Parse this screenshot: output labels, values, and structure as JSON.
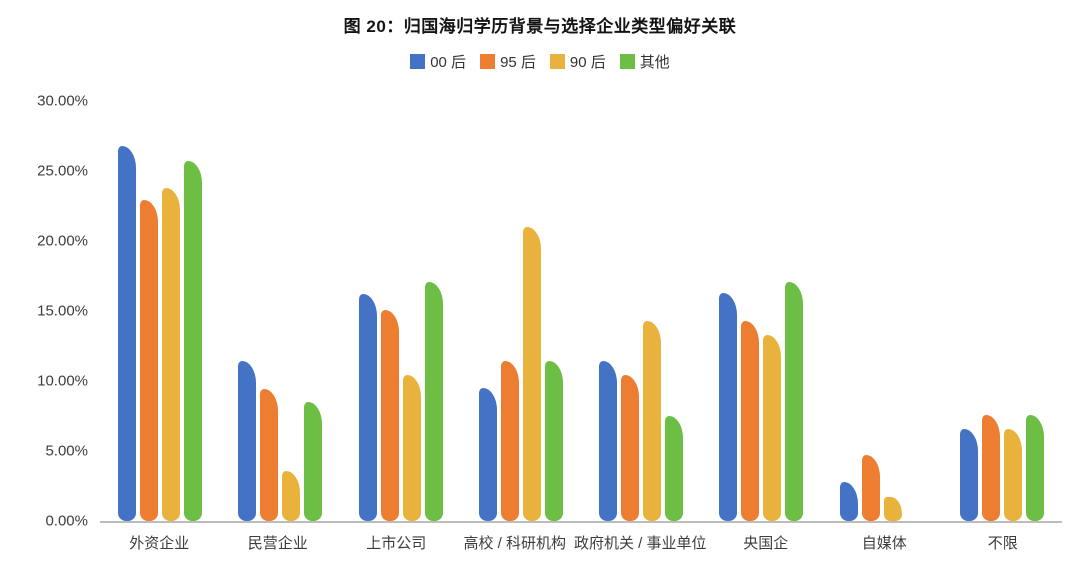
{
  "title": "图 20：归国海归学历背景与选择企业类型偏好关联",
  "legend": {
    "items": [
      {
        "label": "00 后",
        "color": "#4472C4"
      },
      {
        "label": "95 后",
        "color": "#ED7D31"
      },
      {
        "label": "90 后",
        "color": "#E9B23C"
      },
      {
        "label": "其他",
        "color": "#6CBE45"
      }
    ]
  },
  "y_axis": {
    "tick_labels": [
      "30.00%",
      "25.00%",
      "20.00%",
      "15.00%",
      "10.00%",
      "5.00%",
      "0.00%"
    ]
  },
  "chart_data": {
    "type": "bar",
    "title": "图 20：归国海归学历背景与选择企业类型偏好关联",
    "categories": [
      "外资企业",
      "民营企业",
      "上市公司",
      "高校 / 科研机构",
      "政府机关 / 事业单位",
      "央国企",
      "自媒体",
      "不限"
    ],
    "series": [
      {
        "name": "00 后",
        "color": "#4472C4",
        "values": [
          26.8,
          11.4,
          16.2,
          9.5,
          11.4,
          16.3,
          2.8,
          6.6
        ]
      },
      {
        "name": "95 后",
        "color": "#ED7D31",
        "values": [
          22.9,
          9.4,
          15.1,
          11.4,
          10.4,
          14.3,
          4.7,
          7.6
        ]
      },
      {
        "name": "90 后",
        "color": "#E9B23C",
        "values": [
          23.8,
          3.6,
          10.4,
          21.0,
          14.3,
          13.3,
          1.7,
          6.6
        ]
      },
      {
        "name": "其他",
        "color": "#6CBE45",
        "values": [
          25.7,
          8.5,
          17.1,
          11.4,
          7.5,
          17.1,
          0,
          7.6
        ]
      }
    ],
    "xlabel": "",
    "ylabel": "",
    "ylim": [
      0,
      30
    ],
    "y_tick_step": 5,
    "y_tick_format": "0.00%",
    "grid": false,
    "legend_position": "top",
    "background": "#ffffff",
    "axis_line_color": "#bcbcbc",
    "bar_style": "rounded-top-droop-right"
  }
}
